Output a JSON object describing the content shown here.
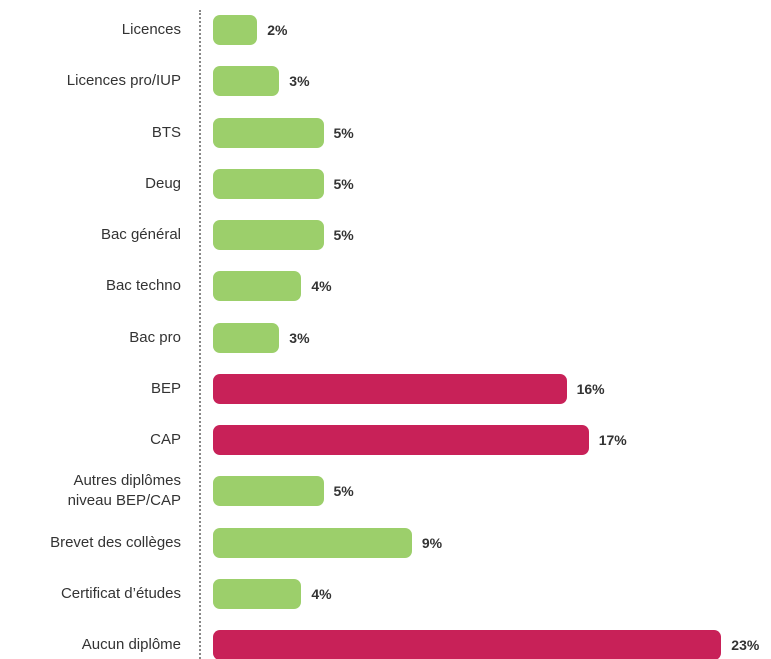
{
  "chart_data": {
    "type": "bar",
    "orientation": "horizontal",
    "categories": [
      "Licences",
      "Licences pro/IUP",
      "BTS",
      "Deug",
      "Bac général",
      "Bac techno",
      "Bac pro",
      "BEP",
      "CAP",
      "Autres diplômes\nniveau BEP/CAP",
      "Brevet des collèges",
      "Certificat d’études",
      "Aucun diplôme"
    ],
    "values": [
      2,
      3,
      5,
      5,
      5,
      4,
      3,
      16,
      17,
      5,
      9,
      4,
      23
    ],
    "value_labels": [
      "2%",
      "3%",
      "5%",
      "5%",
      "5%",
      "4%",
      "3%",
      "16%",
      "17%",
      "5%",
      "9%",
      "4%",
      "23%"
    ],
    "colors": [
      "#9ccf6b",
      "#9ccf6b",
      "#9ccf6b",
      "#9ccf6b",
      "#9ccf6b",
      "#9ccf6b",
      "#9ccf6b",
      "#c82158",
      "#c82158",
      "#9ccf6b",
      "#9ccf6b",
      "#9ccf6b",
      "#c82158"
    ]
  }
}
